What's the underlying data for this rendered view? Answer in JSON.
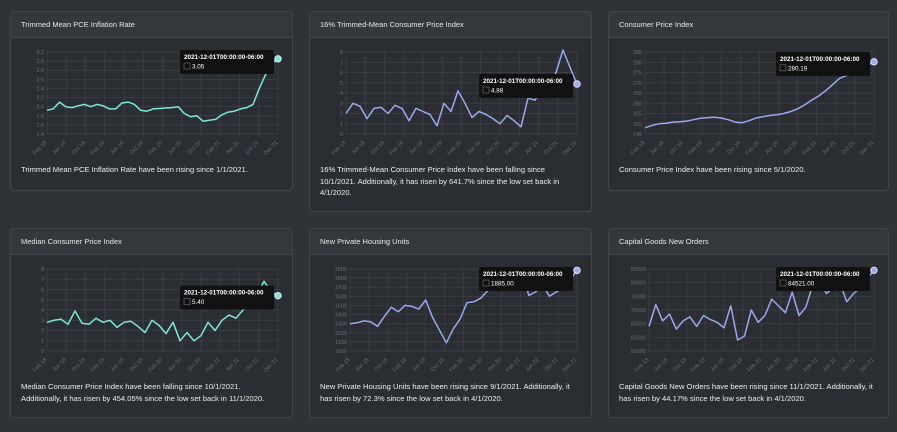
{
  "cards": [
    {
      "title": "Trimmed Mean PCE Inflation Rate",
      "description": "Trimmed Mean PCE Inflation Rate have been rising since 1/1/2021.",
      "tooltip": {
        "date": "2021-12-01T00:00:00-06:00",
        "value": "3.05"
      }
    },
    {
      "title": "16% Trimmed-Mean Consumer Price Index",
      "description": "16% Trimmed-Mean Consumer Price Index have been falling since 10/1/2021. Additionally, it has risen by 641.7% since the low set back in 4/1/2020.",
      "tooltip": {
        "date": "2021-12-01T00:00:00-06:00",
        "value": "4.88"
      }
    },
    {
      "title": "Consumer Price Index",
      "description": "Consumer Price Index have been rising since 5/1/2020.",
      "tooltip": {
        "date": "2021-12-01T00:00:00-06:00",
        "value": "280.19"
      }
    },
    {
      "title": "Median Consumer Price Index",
      "description": "Median Consumer Price Index have been falling since 10/1/2021. Additionally, it has risen by 454.05% since the low set back in 11/1/2020.",
      "tooltip": {
        "date": "2021-12-01T00:00:00-06:00",
        "value": "5.40"
      }
    },
    {
      "title": "New Private Housing Units",
      "description": "New Private Housing Units have been rising since 9/1/2021. Additionally, it has risen by 72.3% since the low set back in 4/1/2020.",
      "tooltip": {
        "date": "2021-12-01T00:00:00-06:00",
        "value": "1885.00"
      }
    },
    {
      "title": "Capital Goods New Orders",
      "description": "Capital Goods New Orders have been rising since 11/1/2021. Additionally, it has risen by 44.17% since the low set back in 4/1/2020.",
      "tooltip": {
        "date": "2021-12-01T00:00:00-06:00",
        "value": "84521.00"
      }
    }
  ],
  "chart_data": [
    {
      "type": "line",
      "color": "#7ee8d2",
      "yticks": [
        "1.4",
        "1.6",
        "1.8",
        "2.0",
        "2.2",
        "2.4",
        "2.6",
        "2.8",
        "3.0",
        "3.2"
      ],
      "ylim": [
        1.4,
        3.2
      ],
      "xticks": [
        "Feb 18",
        "Jun 18",
        "Oct 18",
        "Feb 19",
        "Jun 19",
        "Oct 19",
        "Feb 20",
        "Jun 20",
        "Oct 20",
        "Feb 21",
        "Jun 21",
        "Oct 21",
        "Dec 21"
      ],
      "values": [
        1.92,
        1.95,
        2.1,
        2.0,
        1.98,
        2.02,
        2.05,
        2.0,
        2.05,
        2.02,
        1.95,
        1.95,
        2.08,
        2.1,
        2.05,
        1.92,
        1.9,
        1.95,
        1.96,
        1.97,
        1.98,
        2.0,
        1.85,
        1.78,
        1.8,
        1.68,
        1.7,
        1.72,
        1.82,
        1.88,
        1.9,
        1.95,
        1.98,
        2.05,
        2.4,
        2.7,
        2.95,
        3.05
      ]
    },
    {
      "type": "line",
      "color": "#9aa8f0",
      "yticks": [
        "0",
        "1",
        "2",
        "3",
        "4",
        "5",
        "6",
        "7",
        "8"
      ],
      "ylim": [
        0,
        8
      ],
      "xticks": [
        "Feb 18",
        "Jun 18",
        "Oct 18",
        "Feb 19",
        "Jun 19",
        "Oct 19",
        "Feb 20",
        "Jun 20",
        "Oct 20",
        "Feb 21",
        "Jun 21",
        "Oct 21",
        "Dec 21"
      ],
      "values": [
        2.0,
        3.0,
        2.7,
        1.5,
        2.5,
        2.6,
        2.0,
        2.8,
        2.5,
        1.3,
        2.5,
        2.2,
        1.9,
        0.8,
        3.0,
        2.2,
        4.2,
        3.0,
        1.6,
        2.2,
        1.9,
        1.5,
        1.0,
        1.8,
        1.3,
        0.7,
        3.5,
        3.3,
        4.5,
        4.8,
        6.0,
        8.2,
        6.5,
        4.88
      ]
    },
    {
      "type": "line",
      "color": "#9aa8f0",
      "yticks": [
        "245",
        "250",
        "255",
        "260",
        "265",
        "270",
        "275",
        "280",
        "285"
      ],
      "ylim": [
        245,
        285
      ],
      "xticks": [
        "Feb 18",
        "Jun 18",
        "Oct 18",
        "Feb 19",
        "Jun 19",
        "Oct 19",
        "Feb 20",
        "Jun 20",
        "Oct 20",
        "Feb 21",
        "Jun 21",
        "Oct 21",
        "Dec 21"
      ],
      "values": [
        248.0,
        249.2,
        250.0,
        250.2,
        250.8,
        251.0,
        251.3,
        252.0,
        252.7,
        253.0,
        253.2,
        252.8,
        252.0,
        250.8,
        250.5,
        251.5,
        252.8,
        253.5,
        254.0,
        254.4,
        255.0,
        256.0,
        257.3,
        259.2,
        261.5,
        263.5,
        266.0,
        269.0,
        272.0,
        273.5,
        274.5,
        276.0,
        278.5,
        280.19
      ]
    },
    {
      "type": "line",
      "color": "#7ee8d2",
      "yticks": [
        "0",
        "1",
        "2",
        "3",
        "4",
        "5",
        "6",
        "7",
        "8"
      ],
      "ylim": [
        0,
        8
      ],
      "xticks": [
        "Feb 18",
        "Jun 18",
        "Oct 18",
        "Feb 19",
        "Jun 19",
        "Oct 19",
        "Feb 20",
        "Jun 20",
        "Oct 20",
        "Feb 21",
        "Jun 21",
        "Oct 21",
        "Dec 21"
      ],
      "values": [
        2.8,
        3.0,
        3.1,
        2.6,
        3.9,
        2.7,
        2.6,
        3.2,
        2.8,
        3.0,
        2.3,
        2.8,
        2.9,
        2.4,
        1.8,
        3.0,
        2.5,
        1.7,
        2.8,
        1.0,
        1.8,
        1.0,
        1.5,
        2.8,
        2.0,
        3.0,
        3.5,
        3.2,
        4.0,
        4.5,
        5.5,
        6.8,
        5.8,
        5.4
      ]
    },
    {
      "type": "line",
      "color": "#9aa8f0",
      "yticks": [
        "1000",
        "1100",
        "1200",
        "1300",
        "1400",
        "1500",
        "1600",
        "1700",
        "1800",
        "1900"
      ],
      "ylim": [
        1000,
        1900
      ],
      "xticks": [
        "Feb 18",
        "Jun 18",
        "Oct 18",
        "Feb 19",
        "Jun 19",
        "Oct 19",
        "Feb 20",
        "Jun 20",
        "Oct 20",
        "Feb 21",
        "Jun 21",
        "Oct 21",
        "Dec 21"
      ],
      "values": [
        1300,
        1310,
        1330,
        1320,
        1270,
        1380,
        1480,
        1430,
        1500,
        1490,
        1460,
        1560,
        1370,
        1230,
        1090,
        1240,
        1350,
        1530,
        1540,
        1580,
        1660,
        1720,
        1800,
        1760,
        1850,
        1880,
        1610,
        1650,
        1720,
        1600,
        1650,
        1690,
        1780,
        1885
      ]
    },
    {
      "type": "line",
      "color": "#9aa8f0",
      "yticks": [
        "55000",
        "60000",
        "65000",
        "70000",
        "75000",
        "80000",
        "85000"
      ],
      "ylim": [
        55000,
        85000
      ],
      "xticks": [
        "Feb 18",
        "Jun 18",
        "Oct 18",
        "Feb 19",
        "Jun 19",
        "Oct 19",
        "Feb 20",
        "Jun 20",
        "Oct 20",
        "Feb 21",
        "Jun 21",
        "Oct 21",
        "Dec 21"
      ],
      "values": [
        64000,
        72000,
        66000,
        68500,
        63000,
        66000,
        67500,
        64000,
        68000,
        66500,
        65500,
        63500,
        71500,
        59000,
        60500,
        70000,
        65500,
        68000,
        74000,
        71500,
        69000,
        76500,
        68000,
        71000,
        79000,
        82000,
        76000,
        78000,
        80000,
        73000,
        76000,
        78000,
        81500,
        84521
      ]
    }
  ]
}
